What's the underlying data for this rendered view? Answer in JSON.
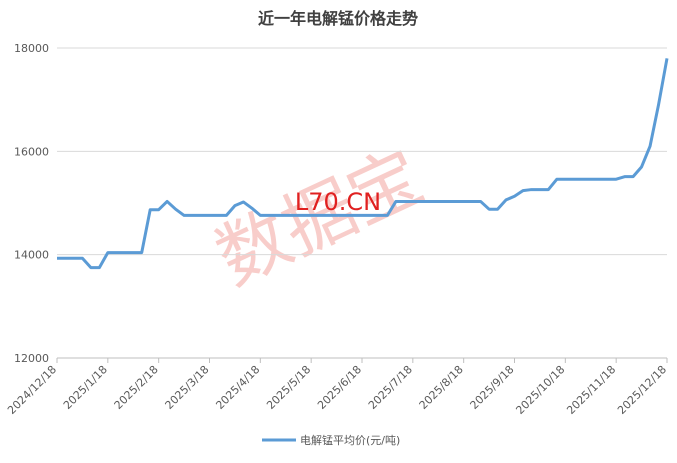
{
  "chart_data": {
    "type": "line",
    "title": "近一年电解锰价格走势",
    "watermark": "数据宝",
    "watermark_site": "L70.CN",
    "categories": [
      "2024/12/18",
      null,
      null,
      null,
      null,
      null,
      "2025/1/18",
      null,
      null,
      null,
      null,
      null,
      "2025/2/18",
      null,
      null,
      null,
      null,
      null,
      "2025/3/18",
      null,
      null,
      null,
      null,
      null,
      "2025/4/18",
      null,
      null,
      null,
      null,
      null,
      "2025/5/18",
      null,
      null,
      null,
      null,
      null,
      "2025/6/18",
      null,
      null,
      null,
      null,
      null,
      "2025/7/18",
      null,
      null,
      null,
      null,
      null,
      "2025/8/18",
      null,
      null,
      null,
      null,
      null,
      "2025/9/18",
      null,
      null,
      null,
      null,
      null,
      "2025/10/18",
      null,
      null,
      null,
      null,
      null,
      "2025/11/18",
      null,
      null,
      null,
      null,
      null,
      "2025/12/18"
    ],
    "series": [
      {
        "name": "电解锰平均价(元/吨)",
        "color": "#5b9bd5",
        "values": [
          13930,
          13930,
          13930,
          13930,
          13750,
          13750,
          14040,
          14040,
          14040,
          14040,
          14040,
          14870,
          14870,
          15030,
          14880,
          14760,
          14760,
          14760,
          14760,
          14760,
          14760,
          14950,
          15020,
          14900,
          14760,
          14760,
          14760,
          14760,
          14760,
          14760,
          14760,
          14760,
          14760,
          14760,
          14760,
          14760,
          14760,
          14760,
          14760,
          14760,
          15030,
          15030,
          15030,
          15030,
          15030,
          15030,
          15030,
          15030,
          15030,
          15030,
          15030,
          14880,
          14880,
          15060,
          15130,
          15240,
          15260,
          15260,
          15260,
          15460,
          15460,
          15460,
          15460,
          15460,
          15460,
          15460,
          15460,
          15510,
          15510,
          15700,
          16100,
          16900,
          17800
        ]
      }
    ],
    "ylim": [
      12000,
      18000
    ],
    "yticks": [
      12000,
      14000,
      16000,
      18000
    ],
    "grid": true
  }
}
